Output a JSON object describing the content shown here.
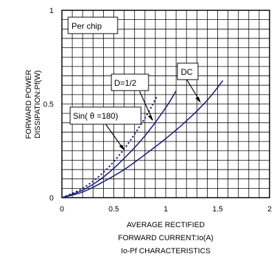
{
  "chart_data": {
    "type": "line",
    "title": "",
    "caption": "Io-Pf CHARACTERISTICS",
    "xlabel_lines": [
      "AVERAGE RECTIFIED",
      "FORWARD CURRENT:Io(A)"
    ],
    "ylabel_lines": [
      "FORWARD POWER",
      "DISSIPATION:Pf(W)"
    ],
    "xlim": [
      0,
      2
    ],
    "ylim": [
      0,
      1
    ],
    "x_ticks": [
      {
        "value": 0,
        "label": "0"
      },
      {
        "value": 0.5,
        "label": "0.5"
      },
      {
        "value": 1,
        "label": "1"
      },
      {
        "value": 1.5,
        "label": "1.5"
      },
      {
        "value": 2,
        "label": "2"
      }
    ],
    "y_ticks": [
      {
        "value": 0,
        "label": "0"
      },
      {
        "value": 0.5,
        "label": "0.5"
      },
      {
        "value": 1,
        "label": "1"
      }
    ],
    "grid": {
      "on": true,
      "x_step": 0.1,
      "y_step": 0.05
    },
    "line_color": "#1a1a7a",
    "series": [
      {
        "name": "DC",
        "style": "solid",
        "x": [
          0,
          0.2,
          0.4,
          0.6,
          0.8,
          1.0,
          1.2,
          1.4,
          1.55
        ],
        "y": [
          0,
          0.03,
          0.085,
          0.15,
          0.23,
          0.315,
          0.41,
          0.52,
          0.625
        ]
      },
      {
        "name": "D=1/2",
        "style": "solid",
        "x": [
          0,
          0.2,
          0.4,
          0.6,
          0.8,
          1.0,
          1.1
        ],
        "y": [
          0,
          0.04,
          0.11,
          0.21,
          0.33,
          0.48,
          0.57
        ]
      },
      {
        "name": "Sin(θ=180)",
        "style": "dotted",
        "x": [
          0,
          0.2,
          0.4,
          0.6,
          0.8,
          0.92
        ],
        "y": [
          0,
          0.05,
          0.135,
          0.26,
          0.425,
          0.545
        ]
      }
    ],
    "annotations": [
      {
        "text": "Per chip",
        "boxed": true
      },
      {
        "text": "D=1/2",
        "boxed": true,
        "target_series": "D=1/2"
      },
      {
        "text": "DC",
        "boxed": true,
        "target_series": "DC"
      },
      {
        "text": "Sin( θ =180)",
        "boxed": true,
        "target_series": "Sin(θ=180)"
      }
    ]
  }
}
